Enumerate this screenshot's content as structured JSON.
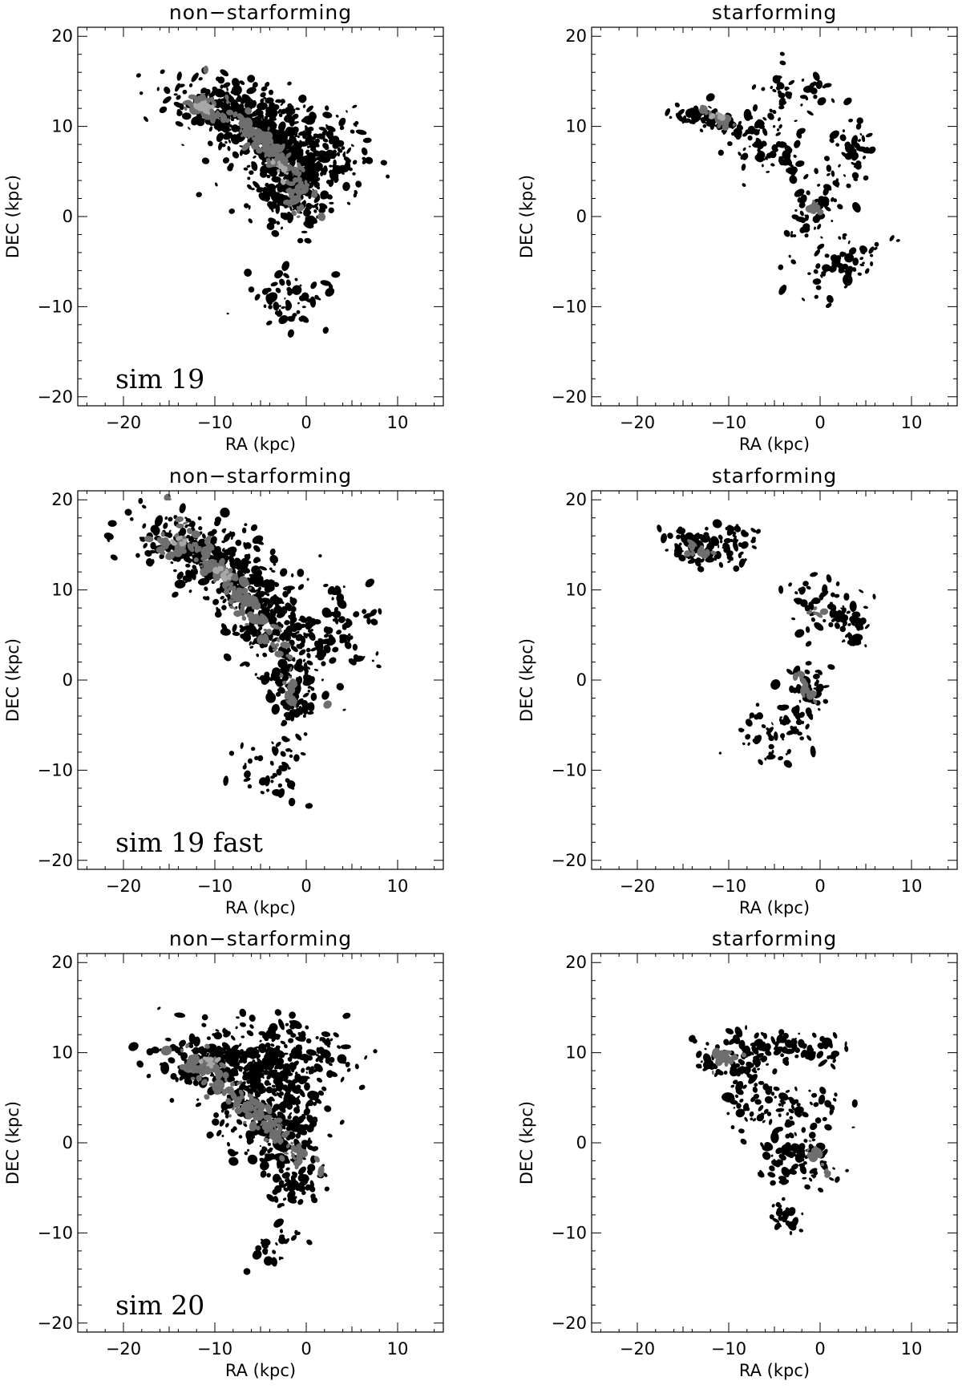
{
  "chart_data": [
    {
      "type": "contour",
      "title": "non−starforming",
      "annotation": "sim 19",
      "xlabel": "RA (kpc)",
      "ylabel": "DEC (kpc)",
      "xlim": [
        -25,
        15
      ],
      "ylim": [
        -21,
        21
      ],
      "xticks": [
        -20,
        -10,
        0,
        10
      ],
      "yticks": [
        -20,
        -10,
        0,
        10,
        20
      ],
      "xtick_labels": [
        "−20",
        "−10",
        "0",
        "10"
      ],
      "ytick_labels": [
        "−20",
        "−10",
        "0",
        "10",
        "20"
      ],
      "clusters": [
        {
          "x": -8.0,
          "y": 11.5,
          "rx": 7.0,
          "ry": 2.8,
          "angle": -20,
          "n": 260,
          "level": 1
        },
        {
          "x": -3.0,
          "y": 7.5,
          "rx": 5.5,
          "ry": 4.5,
          "angle": -50,
          "n": 300,
          "level": 1
        },
        {
          "x": -1.5,
          "y": 2.0,
          "rx": 3.0,
          "ry": 4.0,
          "angle": -60,
          "n": 140,
          "level": 1
        },
        {
          "x": -2.0,
          "y": -8.5,
          "rx": 4.5,
          "ry": 3.5,
          "angle": 0,
          "n": 60,
          "level": 1
        },
        {
          "x": 2.0,
          "y": 7.0,
          "rx": 4.5,
          "ry": 4.5,
          "angle": 0,
          "n": 120,
          "level": 1
        },
        {
          "x": -4.0,
          "y": 7.5,
          "rx": 6.0,
          "ry": 1.1,
          "angle": -45,
          "n": 120,
          "level": 2
        },
        {
          "x": -11.0,
          "y": 12.0,
          "rx": 2.0,
          "ry": 1.3,
          "angle": -20,
          "n": 40,
          "level": 2
        },
        {
          "x": -1.2,
          "y": 2.0,
          "rx": 2.0,
          "ry": 0.7,
          "angle": -75,
          "n": 30,
          "level": 2
        },
        {
          "x": -11.0,
          "y": 12.2,
          "rx": 1.0,
          "ry": 0.8,
          "angle": 0,
          "n": 14,
          "level": 3
        },
        {
          "x": -3.0,
          "y": 5.5,
          "rx": 1.2,
          "ry": 0.6,
          "angle": -45,
          "n": 10,
          "level": 3
        }
      ]
    },
    {
      "type": "contour",
      "title": "starforming",
      "annotation": "",
      "xlabel": "RA (kpc)",
      "ylabel": "DEC (kpc)",
      "xlim": [
        -25,
        15
      ],
      "ylim": [
        -21,
        21
      ],
      "xticks": [
        -20,
        -10,
        0,
        10
      ],
      "yticks": [
        -20,
        -10,
        0,
        10,
        20
      ],
      "xtick_labels": [
        "−20",
        "−10",
        "0",
        "10"
      ],
      "ytick_labels": [
        "−20",
        "−10",
        "0",
        "10",
        "20"
      ],
      "clusters": [
        {
          "x": -13.0,
          "y": 11.0,
          "rx": 3.0,
          "ry": 1.2,
          "angle": -10,
          "n": 60,
          "level": 1
        },
        {
          "x": -6.0,
          "y": 8.0,
          "rx": 4.5,
          "ry": 3.0,
          "angle": -30,
          "n": 90,
          "level": 1
        },
        {
          "x": -1.0,
          "y": 1.0,
          "rx": 2.0,
          "ry": 3.5,
          "angle": -30,
          "n": 60,
          "level": 1
        },
        {
          "x": 2.0,
          "y": -5.5,
          "rx": 5.0,
          "ry": 2.5,
          "angle": 30,
          "n": 60,
          "level": 1
        },
        {
          "x": 3.5,
          "y": 7.0,
          "rx": 2.5,
          "ry": 4.0,
          "angle": 0,
          "n": 50,
          "level": 1
        },
        {
          "x": -3.0,
          "y": 13.5,
          "rx": 5.0,
          "ry": 2.5,
          "angle": 0,
          "n": 40,
          "level": 1
        },
        {
          "x": -11.5,
          "y": 11.0,
          "rx": 1.8,
          "ry": 0.6,
          "angle": -25,
          "n": 20,
          "level": 2
        },
        {
          "x": -0.8,
          "y": 1.2,
          "rx": 1.4,
          "ry": 0.4,
          "angle": -60,
          "n": 14,
          "level": 2
        },
        {
          "x": -11.0,
          "y": 11.2,
          "rx": 0.6,
          "ry": 0.4,
          "angle": 0,
          "n": 6,
          "level": 3
        }
      ]
    },
    {
      "type": "contour",
      "title": "non−starforming",
      "annotation": "sim 19 fast",
      "xlabel": "RA (kpc)",
      "ylabel": "DEC (kpc)",
      "xlim": [
        -25,
        15
      ],
      "ylim": [
        -21,
        21
      ],
      "xticks": [
        -20,
        -10,
        0,
        10
      ],
      "yticks": [
        -20,
        -10,
        0,
        10,
        20
      ],
      "xtick_labels": [
        "−20",
        "−10",
        "0",
        "10"
      ],
      "ytick_labels": [
        "−20",
        "−10",
        "0",
        "10",
        "20"
      ],
      "clusters": [
        {
          "x": -11.0,
          "y": 14.0,
          "rx": 7.0,
          "ry": 3.5,
          "angle": -20,
          "n": 260,
          "level": 1
        },
        {
          "x": -4.5,
          "y": 6.5,
          "rx": 8.0,
          "ry": 3.5,
          "angle": -55,
          "n": 320,
          "level": 1
        },
        {
          "x": -1.5,
          "y": -2.5,
          "rx": 2.0,
          "ry": 4.0,
          "angle": 0,
          "n": 80,
          "level": 1
        },
        {
          "x": -4.0,
          "y": -10.0,
          "rx": 4.0,
          "ry": 4.0,
          "angle": 0,
          "n": 40,
          "level": 1
        },
        {
          "x": 4.0,
          "y": 6.0,
          "rx": 4.0,
          "ry": 5.0,
          "angle": 0,
          "n": 80,
          "level": 1
        },
        {
          "x": -7.5,
          "y": 9.5,
          "rx": 8.0,
          "ry": 1.2,
          "angle": -52,
          "n": 130,
          "level": 2
        },
        {
          "x": -14.5,
          "y": 15.0,
          "rx": 2.2,
          "ry": 1.0,
          "angle": -10,
          "n": 30,
          "level": 2
        },
        {
          "x": -1.8,
          "y": -1.5,
          "rx": 1.8,
          "ry": 0.6,
          "angle": -80,
          "n": 20,
          "level": 2
        },
        {
          "x": -14.0,
          "y": 15.3,
          "rx": 0.9,
          "ry": 0.6,
          "angle": 0,
          "n": 10,
          "level": 3
        },
        {
          "x": -9.0,
          "y": 12.0,
          "rx": 1.4,
          "ry": 0.5,
          "angle": -45,
          "n": 10,
          "level": 3
        }
      ]
    },
    {
      "type": "contour",
      "title": "starforming",
      "annotation": "",
      "xlabel": "RA (kpc)",
      "ylabel": "DEC (kpc)",
      "xlim": [
        -25,
        15
      ],
      "ylim": [
        -21,
        21
      ],
      "xticks": [
        -20,
        -10,
        0,
        10
      ],
      "yticks": [
        -20,
        -10,
        0,
        10,
        20
      ],
      "xtick_labels": [
        "−20",
        "−10",
        "0",
        "10"
      ],
      "ytick_labels": [
        "−20",
        "−10",
        "0",
        "10",
        "20"
      ],
      "clusters": [
        {
          "x": -13.0,
          "y": 14.5,
          "rx": 4.0,
          "ry": 1.8,
          "angle": -10,
          "n": 70,
          "level": 1
        },
        {
          "x": -9.0,
          "y": 16.0,
          "rx": 2.5,
          "ry": 2.0,
          "angle": 0,
          "n": 30,
          "level": 1
        },
        {
          "x": 1.0,
          "y": 7.5,
          "rx": 5.0,
          "ry": 2.5,
          "angle": -20,
          "n": 60,
          "level": 1
        },
        {
          "x": -2.0,
          "y": -2.0,
          "rx": 2.5,
          "ry": 4.5,
          "angle": -20,
          "n": 60,
          "level": 1
        },
        {
          "x": -6.0,
          "y": -6.0,
          "rx": 3.5,
          "ry": 3.0,
          "angle": 0,
          "n": 40,
          "level": 1
        },
        {
          "x": 3.5,
          "y": 5.0,
          "rx": 1.5,
          "ry": 3.0,
          "angle": 0,
          "n": 25,
          "level": 1
        },
        {
          "x": -13.5,
          "y": 14.3,
          "rx": 2.0,
          "ry": 0.6,
          "angle": -15,
          "n": 16,
          "level": 2
        },
        {
          "x": -1.6,
          "y": -1.0,
          "rx": 2.2,
          "ry": 0.5,
          "angle": -65,
          "n": 16,
          "level": 2
        },
        {
          "x": -0.5,
          "y": 7.5,
          "rx": 0.8,
          "ry": 0.6,
          "angle": 0,
          "n": 6,
          "level": 2
        }
      ]
    },
    {
      "type": "contour",
      "title": "non−starforming",
      "annotation": "sim 20",
      "xlabel": "RA (kpc)",
      "ylabel": "DEC (kpc)",
      "xlim": [
        -25,
        15
      ],
      "ylim": [
        -21,
        21
      ],
      "xticks": [
        -20,
        -10,
        0,
        10
      ],
      "yticks": [
        -20,
        -10,
        0,
        10,
        20
      ],
      "xtick_labels": [
        "−20",
        "−10",
        "0",
        "10"
      ],
      "ytick_labels": [
        "−20",
        "−10",
        "0",
        "10",
        "20"
      ],
      "clusters": [
        {
          "x": -10.0,
          "y": 8.5,
          "rx": 5.5,
          "ry": 3.0,
          "angle": -10,
          "n": 200,
          "level": 1
        },
        {
          "x": -3.0,
          "y": 9.5,
          "rx": 7.0,
          "ry": 3.5,
          "angle": 0,
          "n": 260,
          "level": 1
        },
        {
          "x": -3.5,
          "y": 2.0,
          "rx": 5.0,
          "ry": 4.5,
          "angle": -40,
          "n": 260,
          "level": 1
        },
        {
          "x": -1.5,
          "y": -4.0,
          "rx": 2.5,
          "ry": 2.5,
          "angle": 0,
          "n": 60,
          "level": 1
        },
        {
          "x": -4.0,
          "y": -11.0,
          "rx": 3.0,
          "ry": 2.5,
          "angle": 0,
          "n": 25,
          "level": 1
        },
        {
          "x": -6.5,
          "y": 4.0,
          "rx": 7.0,
          "ry": 1.2,
          "angle": -40,
          "n": 120,
          "level": 2
        },
        {
          "x": -11.5,
          "y": 8.5,
          "rx": 2.5,
          "ry": 1.0,
          "angle": 10,
          "n": 30,
          "level": 2
        },
        {
          "x": -1.5,
          "y": -1.5,
          "rx": 1.2,
          "ry": 1.2,
          "angle": 0,
          "n": 14,
          "level": 2
        },
        {
          "x": -10.5,
          "y": 8.8,
          "rx": 1.0,
          "ry": 0.6,
          "angle": 0,
          "n": 10,
          "level": 3
        }
      ]
    },
    {
      "type": "contour",
      "title": "starforming",
      "annotation": "",
      "xlabel": "RA (kpc)",
      "ylabel": "DEC (kpc)",
      "xlim": [
        -25,
        15
      ],
      "ylim": [
        -21,
        21
      ],
      "xticks": [
        -20,
        -10,
        0,
        10
      ],
      "yticks": [
        -20,
        -10,
        0,
        10,
        20
      ],
      "xtick_labels": [
        "−20",
        "−10",
        "0",
        "10"
      ],
      "ytick_labels": [
        "−20",
        "−10",
        "0",
        "10",
        "20"
      ],
      "clusters": [
        {
          "x": -9.0,
          "y": 9.5,
          "rx": 4.0,
          "ry": 2.5,
          "angle": 10,
          "n": 80,
          "level": 1
        },
        {
          "x": -3.0,
          "y": 10.5,
          "rx": 5.0,
          "ry": 2.0,
          "angle": 0,
          "n": 70,
          "level": 1
        },
        {
          "x": -4.0,
          "y": 4.0,
          "rx": 6.0,
          "ry": 3.0,
          "angle": 0,
          "n": 90,
          "level": 1
        },
        {
          "x": -2.0,
          "y": -2.0,
          "rx": 4.0,
          "ry": 3.0,
          "angle": 0,
          "n": 90,
          "level": 1
        },
        {
          "x": -4.0,
          "y": -7.5,
          "rx": 2.0,
          "ry": 2.0,
          "angle": 0,
          "n": 25,
          "level": 1
        },
        {
          "x": -10.5,
          "y": 9.2,
          "rx": 2.0,
          "ry": 0.7,
          "angle": 20,
          "n": 16,
          "level": 2
        },
        {
          "x": -0.5,
          "y": -1.5,
          "rx": 1.8,
          "ry": 0.5,
          "angle": -70,
          "n": 12,
          "level": 2
        }
      ]
    }
  ]
}
